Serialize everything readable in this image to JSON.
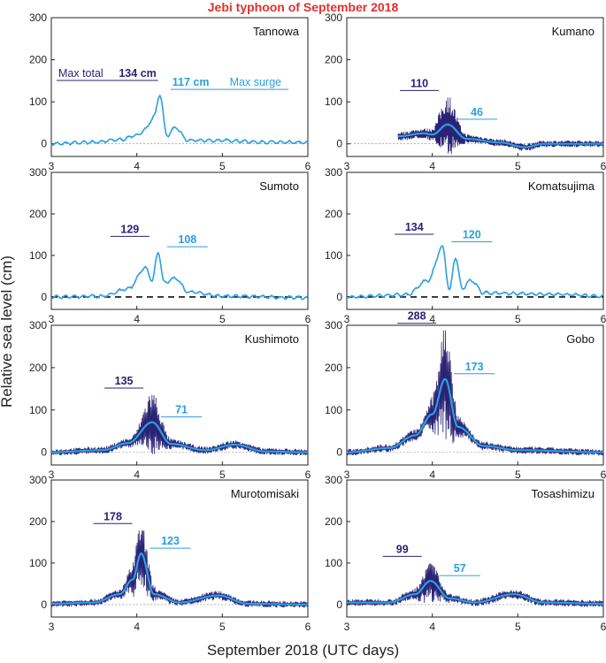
{
  "title": "Jebi typhoon of September 2018",
  "xlabel": "September 2018 (UTC days)",
  "ylabel": "Relative sea level (cm)",
  "colors": {
    "title": "#e0312b",
    "total": "#2a2375",
    "surge": "#2a9fe0",
    "zero": "#888888"
  },
  "chart_data": [
    {
      "type": "line",
      "station": "Tannowa",
      "xlim": [
        3,
        6
      ],
      "ylim": [
        -30,
        300
      ],
      "xticks": [
        "3",
        "4",
        "5",
        "6"
      ],
      "yticks": [
        "0",
        "100",
        "200",
        "300"
      ],
      "max_total": "134 cm",
      "max_surge": "117 cm",
      "max_total_label": "Max total",
      "max_surge_label": "Max surge",
      "peak_x": 4.27,
      "surge_peak": 117,
      "total_peak": 134,
      "hires": false,
      "dashed_zero": false,
      "series": [
        {
          "name": "surge",
          "x": [
            3.0,
            3.5,
            3.8,
            4.0,
            4.1,
            4.2,
            4.27,
            4.35,
            4.45,
            4.6,
            5.0,
            5.5,
            6.0
          ],
          "values": [
            0,
            4,
            10,
            20,
            35,
            65,
            117,
            20,
            38,
            8,
            8,
            4,
            3
          ]
        }
      ]
    },
    {
      "type": "line",
      "station": "Kumano",
      "xlim": [
        3,
        6
      ],
      "ylim": [
        -30,
        300
      ],
      "xticks": [
        "3",
        "4",
        "5",
        "6"
      ],
      "yticks": [
        "0",
        "100",
        "200",
        "300"
      ],
      "max_total": "110",
      "max_surge": "46",
      "peak_x": 4.18,
      "surge_peak": 46,
      "total_peak": 110,
      "hires": true,
      "dashed_zero": false,
      "series": [
        {
          "name": "surge",
          "x": [
            3.6,
            3.9,
            4.0,
            4.18,
            4.4,
            4.8,
            5.08,
            5.3,
            6.0
          ],
          "values": [
            18,
            25,
            22,
            46,
            12,
            3,
            -8,
            0,
            0
          ]
        }
      ]
    },
    {
      "type": "line",
      "station": "Sumoto",
      "xlim": [
        3,
        6
      ],
      "ylim": [
        -30,
        300
      ],
      "xticks": [
        "3",
        "4",
        "5",
        "6"
      ],
      "yticks": [
        "0",
        "100",
        "200",
        "300"
      ],
      "max_total": "129",
      "max_surge": "108",
      "peak_x": 4.25,
      "surge_peak": 108,
      "total_peak": 129,
      "hires": false,
      "dashed_zero": true,
      "series": [
        {
          "name": "surge",
          "x": [
            3.0,
            3.6,
            3.9,
            4.1,
            4.18,
            4.25,
            4.32,
            4.45,
            4.6,
            5.0,
            6.0
          ],
          "values": [
            0,
            2,
            20,
            70,
            40,
            108,
            35,
            45,
            12,
            2,
            -2
          ]
        }
      ]
    },
    {
      "type": "line",
      "station": "Komatsujima",
      "xlim": [
        3,
        6
      ],
      "ylim": [
        -30,
        300
      ],
      "xticks": [
        "3",
        "4",
        "5",
        "6"
      ],
      "yticks": [
        "0",
        "100",
        "200",
        "300"
      ],
      "max_total": "134",
      "max_surge": "120",
      "peak_x": 4.12,
      "surge_peak": 120,
      "total_peak": 134,
      "hires": false,
      "dashed_zero": true,
      "series": [
        {
          "name": "surge",
          "x": [
            3.0,
            3.7,
            3.95,
            4.12,
            4.2,
            4.27,
            4.35,
            4.45,
            4.6,
            5.0,
            5.5,
            6.0
          ],
          "values": [
            0,
            5,
            40,
            120,
            15,
            95,
            20,
            40,
            10,
            8,
            6,
            2
          ]
        }
      ]
    },
    {
      "type": "line",
      "station": "Kushimoto",
      "xlim": [
        3,
        6
      ],
      "ylim": [
        -30,
        300
      ],
      "xticks": [
        "3",
        "4",
        "5",
        "6"
      ],
      "yticks": [
        "0",
        "100",
        "200",
        "300"
      ],
      "max_total": "135",
      "max_surge": "71",
      "peak_x": 4.18,
      "surge_peak": 71,
      "total_peak": 135,
      "hires": true,
      "dashed_zero": false,
      "series": [
        {
          "name": "surge",
          "x": [
            3.0,
            3.6,
            3.9,
            4.18,
            4.4,
            4.8,
            5.15,
            5.5,
            6.0
          ],
          "values": [
            0,
            5,
            22,
            71,
            20,
            5,
            18,
            2,
            0
          ]
        }
      ]
    },
    {
      "type": "line",
      "station": "Gobo",
      "xlim": [
        3,
        6
      ],
      "ylim": [
        -30,
        300
      ],
      "xticks": [
        "3",
        "4",
        "5",
        "6"
      ],
      "yticks": [
        "0",
        "100",
        "200",
        "300"
      ],
      "max_total": "288",
      "max_surge": "173",
      "peak_x": 4.15,
      "surge_peak": 173,
      "total_peak": 288,
      "hires": true,
      "dashed_zero": false,
      "series": [
        {
          "name": "surge",
          "x": [
            3.0,
            3.5,
            3.8,
            4.0,
            4.15,
            4.3,
            4.6,
            5.0,
            6.0
          ],
          "values": [
            0,
            10,
            40,
            90,
            173,
            60,
            15,
            5,
            0
          ]
        }
      ]
    },
    {
      "type": "line",
      "station": "Murotomisaki",
      "xlim": [
        3,
        6
      ],
      "ylim": [
        -30,
        300
      ],
      "xticks": [
        "3",
        "4",
        "5",
        "6"
      ],
      "yticks": [
        "0",
        "100",
        "200",
        "300"
      ],
      "max_total": "178",
      "max_surge": "123",
      "peak_x": 4.05,
      "surge_peak": 123,
      "total_peak": 178,
      "hires": true,
      "dashed_zero": false,
      "series": [
        {
          "name": "surge",
          "x": [
            3.0,
            3.5,
            3.8,
            3.95,
            4.05,
            4.2,
            4.5,
            4.95,
            5.3,
            6.0
          ],
          "values": [
            2,
            5,
            25,
            60,
            123,
            25,
            5,
            22,
            2,
            0
          ]
        }
      ]
    },
    {
      "type": "line",
      "station": "Tosashimizu",
      "xlim": [
        3,
        6
      ],
      "ylim": [
        -30,
        300
      ],
      "xticks": [
        "3",
        "4",
        "5",
        "6"
      ],
      "yticks": [
        "0",
        "100",
        "200",
        "300"
      ],
      "max_total": "99",
      "max_surge": "57",
      "peak_x": 3.98,
      "surge_peak": 57,
      "total_peak": 99,
      "hires": true,
      "dashed_zero": false,
      "series": [
        {
          "name": "surge",
          "x": [
            3.0,
            3.5,
            3.8,
            3.98,
            4.2,
            4.5,
            4.95,
            5.3,
            6.0
          ],
          "values": [
            5,
            5,
            25,
            57,
            15,
            5,
            25,
            5,
            2
          ]
        }
      ]
    }
  ]
}
